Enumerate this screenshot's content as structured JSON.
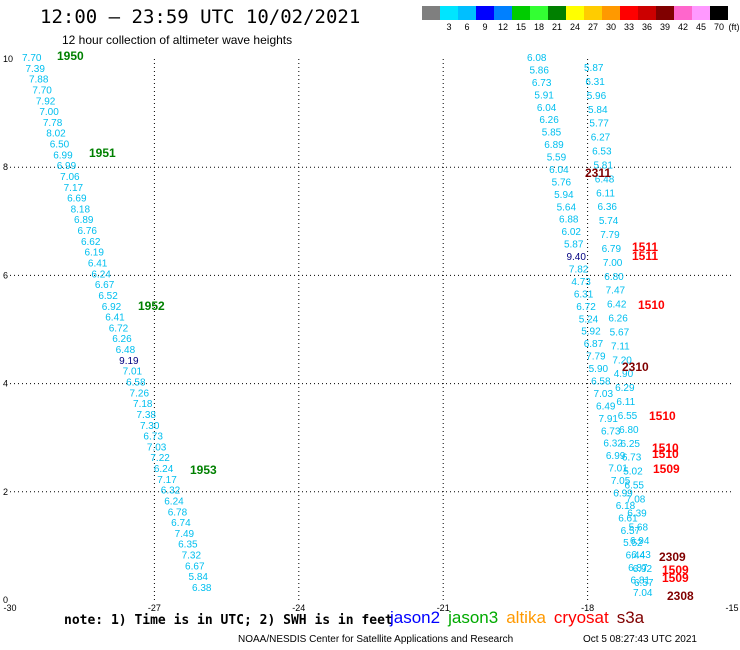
{
  "header": {
    "title": "12:00 – 23:59 UTC 10/02/2021",
    "subtitle": "12 hour collection of altimeter wave heights",
    "units_label": "(ft)"
  },
  "legend": {
    "levels": [
      "",
      "3",
      "6",
      "9",
      "12",
      "15",
      "18",
      "21",
      "24",
      "27",
      "30",
      "33",
      "36",
      "39",
      "42",
      "45",
      "70"
    ],
    "colors": [
      "#7f7f7f",
      "#00e5ff",
      "#00bfff",
      "#0000ff",
      "#0080ff",
      "#00cc00",
      "#33ff33",
      "#008000",
      "#ffff00",
      "#ffcc00",
      "#ff9900",
      "#ff0000",
      "#cc0000",
      "#800000",
      "#ff66cc",
      "#ff99ff",
      "#000000"
    ]
  },
  "axes": {
    "x_ticks": [
      "-30",
      "-27",
      "-24",
      "-21",
      "-18",
      "-15"
    ],
    "y_ticks": [
      "0",
      "2",
      "4",
      "6",
      "8",
      "10"
    ]
  },
  "track_left": {
    "color": "#00bfef",
    "values": [
      "7.70",
      "7.39",
      "7.88",
      "7.70",
      "7.92",
      "7.00",
      "7.78",
      "8.02",
      "6.50",
      "6.99",
      "6.99",
      "7.06",
      "7.17",
      "6.69",
      "8.18",
      "6.89",
      "6.76",
      "6.62",
      "6.19",
      "6.41",
      "6.24",
      "6.67",
      "6.52",
      "6.92",
      "6.41",
      "6.72",
      "6.26",
      "6.48",
      "9.19",
      "7.01",
      "6.58",
      "7.26",
      "7.18",
      "7.38",
      "7.30",
      "6.73",
      "7.03",
      "7.22",
      "6.24",
      "7.17",
      "6.32",
      "6.24",
      "6.78",
      "6.74",
      "7.49",
      "6.35",
      "7.32",
      "6.67",
      "5.84",
      "6.38"
    ],
    "time_labels": [
      "1950",
      "1951",
      "1952",
      "1953"
    ]
  },
  "track_right": {
    "color": "#00bfef",
    "col_a": [
      "6.08",
      "5.86",
      "6.73",
      "5.91",
      "6.04",
      "6.26",
      "5.85",
      "6.89",
      "5.59",
      "6.04",
      "5.76",
      "5.94",
      "5.64",
      "6.88",
      "6.02",
      "5.87",
      "9.40",
      "7.82",
      "4.73",
      "6.31",
      "6.72",
      "5.24",
      "5.92",
      "6.87",
      "7.79",
      "5.90",
      "6.58",
      "7.03",
      "6.49",
      "7.91",
      "6.73",
      "6.32",
      "6.99",
      "7.01",
      "7.05",
      "6.99",
      "6.18",
      "6.61",
      "6.57",
      "5.52",
      "6.44",
      "6.87",
      "6.81",
      "7.04"
    ],
    "col_b": [
      "5.87",
      "6.31",
      "5.96",
      "5.84",
      "5.77",
      "6.27",
      "6.53",
      "5.81",
      "6.48",
      "6.11",
      "6.36",
      "5.74",
      "7.79",
      "6.79",
      "7.00",
      "6.80",
      "7.47",
      "6.42",
      "6.26",
      "5.67",
      "7.11",
      "7.20",
      "4.90",
      "6.29",
      "6.11",
      "6.55",
      "6.80",
      "6.25",
      "6.73",
      "5.02",
      "6.55",
      "7.08",
      "6.39",
      "5.68",
      "6.94",
      "6.43",
      "6.92",
      "6.57"
    ],
    "time_labels": [
      "2311",
      "1511",
      "1511",
      "1510",
      "2310",
      "1510",
      "1510",
      "1510",
      "1509",
      "2309",
      "1509",
      "1509",
      "2308"
    ],
    "time_label_colors": [
      "#800000",
      "#ff0000",
      "#ff0000",
      "#ff0000",
      "#800000",
      "#ff0000",
      "#ff0000",
      "#ff0000",
      "#ff0000",
      "#800000",
      "#ff0000",
      "#ff0000",
      "#800000"
    ]
  },
  "footer": {
    "note": "note: 1) Time is in UTC; 2) SWH is in feet",
    "satellites": [
      {
        "name": "jason2",
        "color": "#0000ff"
      },
      {
        "name": "jason3",
        "color": "#00aa00"
      },
      {
        "name": "altika",
        "color": "#ff9900"
      },
      {
        "name": "cryosat",
        "color": "#ff0000"
      },
      {
        "name": "s3a",
        "color": "#800000"
      }
    ],
    "credit": "NOAA/NESDIS Center for Satellite Applications and Research",
    "timestamp": "Oct  5 08:27:43 UTC 2021"
  }
}
